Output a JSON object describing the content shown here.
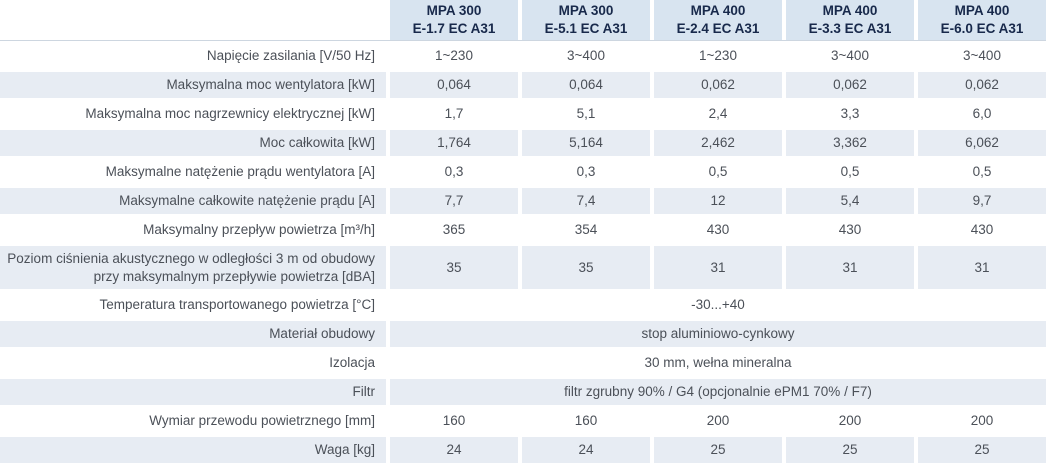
{
  "table": {
    "title": "MPA technical specification table",
    "colors": {
      "header_bg": "#d8e4f0",
      "header_text": "#18294b",
      "stripe_bg": "#e7ecf3",
      "body_text": "#4b5058",
      "divider": "#cdd6e0"
    },
    "columns": [
      {
        "model": "MPA 300",
        "variant": "E-1.7 EC A31"
      },
      {
        "model": "MPA 300",
        "variant": "E-5.1 EC A31"
      },
      {
        "model": "MPA 400",
        "variant": "E-2.4 EC A31"
      },
      {
        "model": "MPA 400",
        "variant": "E-3.3 EC A31"
      },
      {
        "model": "MPA 400",
        "variant": "E-6.0 EC A31"
      }
    ],
    "rows": [
      {
        "label": "Napięcie zasilania [V/50 Hz]",
        "values": [
          "1~230",
          "3~400",
          "1~230",
          "3~400",
          "3~400"
        ]
      },
      {
        "label": "Maksymalna moc wentylatora [kW]",
        "values": [
          "0,064",
          "0,064",
          "0,062",
          "0,062",
          "0,062"
        ]
      },
      {
        "label": "Maksymalna moc nagrzewnicy elektrycznej [kW]",
        "values": [
          "1,7",
          "5,1",
          "2,4",
          "3,3",
          "6,0"
        ]
      },
      {
        "label": "Moc całkowita [kW]",
        "values": [
          "1,764",
          "5,164",
          "2,462",
          "3,362",
          "6,062"
        ]
      },
      {
        "label": "Maksymalne natężenie prądu wentylatora [A]",
        "values": [
          "0,3",
          "0,3",
          "0,5",
          "0,5",
          "0,5"
        ]
      },
      {
        "label": "Maksymalne całkowite natężenie prądu [A]",
        "values": [
          "7,7",
          "7,4",
          "12",
          "5,4",
          "9,7"
        ]
      },
      {
        "label": "Maksymalny przepływ powietrza [m³/h]",
        "values": [
          "365",
          "354",
          "430",
          "430",
          "430"
        ]
      },
      {
        "label": "Poziom ciśnienia akustycznego w odległości 3 m od obudowy\nprzy maksymalnym przepływie powietrza [dBA]",
        "values": [
          "35",
          "35",
          "31",
          "31",
          "31"
        ]
      },
      {
        "label": "Temperatura transportowanego powietrza [°C]",
        "span_value": "-30...+40"
      },
      {
        "label": "Materiał obudowy",
        "span_value": "stop aluminiowo-cynkowy"
      },
      {
        "label": "Izolacja",
        "span_value": "30 mm, wełna mineralna"
      },
      {
        "label": "Filtr",
        "span_value": "filtr zgrubny 90% / G4 (opcjonalnie ePM1 70% / F7)"
      },
      {
        "label": "Wymiar przewodu powietrznego [mm]",
        "values": [
          "160",
          "160",
          "200",
          "200",
          "200"
        ]
      },
      {
        "label": "Waga [kg]",
        "values": [
          "24",
          "24",
          "25",
          "25",
          "25"
        ]
      }
    ]
  }
}
